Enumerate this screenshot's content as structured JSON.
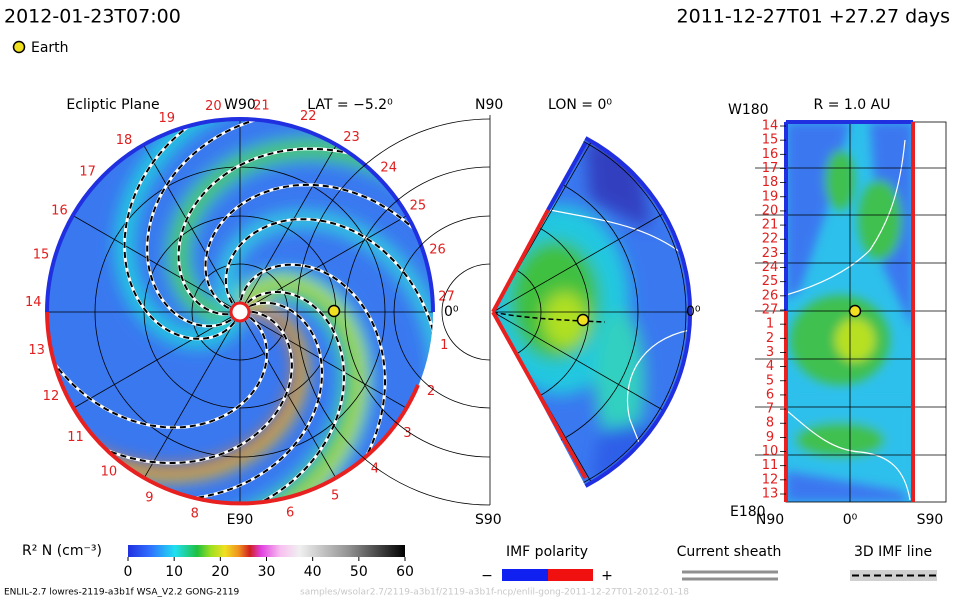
{
  "header": {
    "time": "2012-01-23T07:00",
    "start": "2011-12-27T01 +27.27 days"
  },
  "legend": {
    "earth": "Earth"
  },
  "ecliptic": {
    "title": "Ecliptic Plane",
    "top": "W90",
    "lat": "LAT = −5.2⁰",
    "bottom": "E90",
    "right": "0⁰",
    "day_labels": [
      1,
      2,
      3,
      4,
      5,
      6,
      8,
      9,
      10,
      11,
      12,
      13,
      14,
      15,
      16,
      17,
      18,
      19,
      20,
      21,
      22,
      23,
      24,
      25,
      26,
      27
    ]
  },
  "meridian": {
    "top": "N90",
    "lon": "LON = 0⁰",
    "right": "0⁰",
    "bottom": "S90"
  },
  "radial": {
    "top": "W180",
    "r": "R = 1.0 AU",
    "bottom": "E180",
    "x_labels": [
      "N90",
      "0⁰",
      "S90"
    ],
    "day_labels": [
      14,
      15,
      16,
      17,
      18,
      19,
      20,
      21,
      22,
      23,
      24,
      25,
      26,
      27,
      1,
      2,
      3,
      4,
      5,
      6,
      7,
      8,
      9,
      10,
      11,
      12,
      13
    ]
  },
  "colorbar": {
    "label": "R² N (cm⁻³)",
    "range": [
      0,
      60
    ],
    "ticks": [
      0,
      10,
      20,
      30,
      40,
      50,
      60
    ]
  },
  "polarity": {
    "title": "IMF polarity",
    "minus": "−",
    "plus": "+"
  },
  "sheath": "Current sheath",
  "imf_line": "3D IMF line",
  "footer": {
    "version": "ENLIL-2.7 lowres-2119-a3b1f WSA_V2.2 GONG-2119",
    "path": "samples/wsolar2.7/2119-a3b1f/2119-a3b1f-ncp/enlil-gong-2011-12-27T01-2012-01-18"
  }
}
